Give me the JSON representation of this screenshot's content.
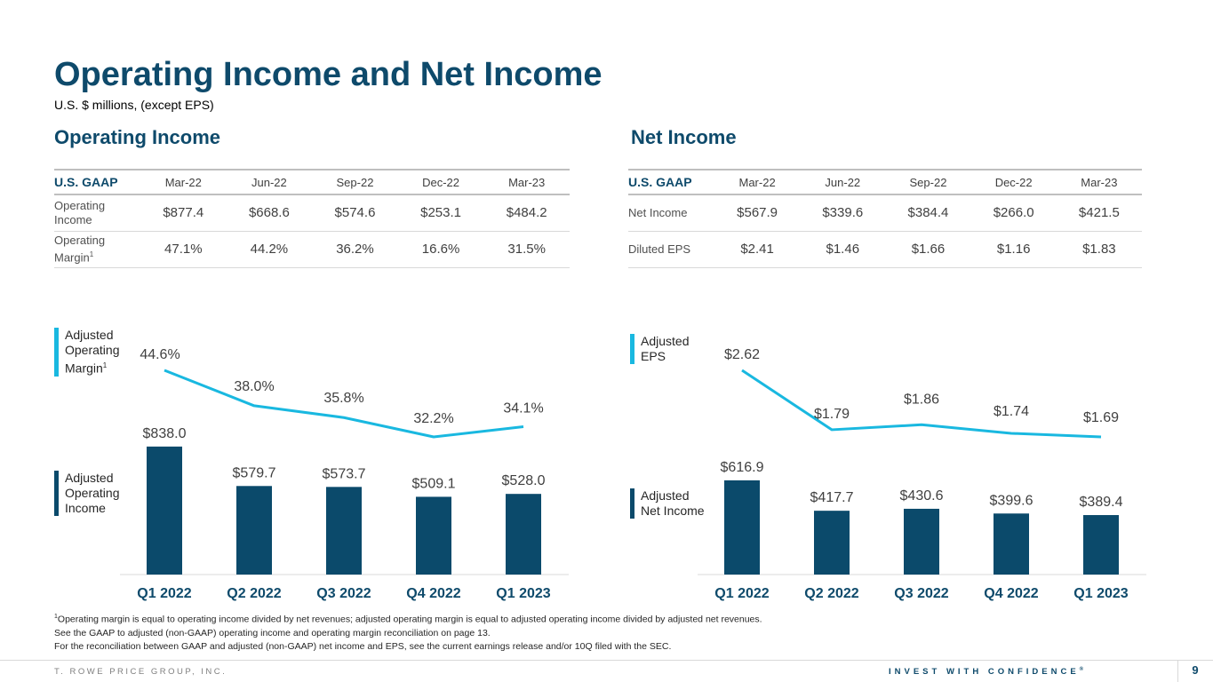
{
  "title": "Operating Income and Net Income",
  "subtitle": "U.S. $ millions, (except EPS)",
  "left": {
    "section": "Operating Income",
    "table": {
      "label": "U.S. GAAP",
      "columns": [
        "Mar-22",
        "Jun-22",
        "Sep-22",
        "Dec-22",
        "Mar-23"
      ],
      "rows": [
        {
          "label": "Operating Income",
          "values": [
            "$877.4",
            "$668.6",
            "$574.6",
            "$253.1",
            "$484.2"
          ]
        },
        {
          "label": "Operating Margin",
          "sup": "1",
          "values": [
            "47.1%",
            "44.2%",
            "36.2%",
            "16.6%",
            "31.5%"
          ]
        }
      ]
    },
    "legend_line": "Adjusted Operating Margin",
    "legend_line_sup": "1",
    "legend_bar": "Adjusted Operating Income"
  },
  "right": {
    "section": "Net Income",
    "table": {
      "label": "U.S. GAAP",
      "columns": [
        "Mar-22",
        "Jun-22",
        "Sep-22",
        "Dec-22",
        "Mar-23"
      ],
      "rows": [
        {
          "label": "Net Income",
          "values": [
            "$567.9",
            "$339.6",
            "$384.4",
            "$266.0",
            "$421.5"
          ]
        },
        {
          "label": "Diluted EPS",
          "values": [
            "$2.41",
            "$1.46",
            "$1.66",
            "$1.16",
            "$1.83"
          ]
        }
      ]
    },
    "legend_line": "Adjusted EPS",
    "legend_bar": "Adjusted Net Income"
  },
  "chart_data": [
    {
      "type": "bar",
      "title": "Adjusted Operating Income and Adjusted Operating Margin",
      "categories": [
        "Q1 2022",
        "Q2 2022",
        "Q3 2022",
        "Q4 2022",
        "Q1 2023"
      ],
      "series": [
        {
          "name": "Adjusted Operating Income",
          "kind": "bar",
          "values": [
            838.0,
            579.7,
            573.7,
            509.1,
            528.0
          ],
          "labels": [
            "$838.0",
            "$579.7",
            "$573.7",
            "$509.1",
            "$528.0"
          ],
          "color": "#0b4a6b"
        },
        {
          "name": "Adjusted Operating Margin",
          "kind": "line",
          "values": [
            44.6,
            38.0,
            35.8,
            32.2,
            34.1
          ],
          "labels": [
            "44.6%",
            "38.0%",
            "35.8%",
            "32.2%",
            "34.1%"
          ],
          "color": "#19b8e0"
        }
      ]
    },
    {
      "type": "bar",
      "title": "Adjusted Net Income and Adjusted EPS",
      "categories": [
        "Q1 2022",
        "Q2 2022",
        "Q3 2022",
        "Q4 2022",
        "Q1 2023"
      ],
      "series": [
        {
          "name": "Adjusted Net Income",
          "kind": "bar",
          "values": [
            616.9,
            417.7,
            430.6,
            399.6,
            389.4
          ],
          "labels": [
            "$616.9",
            "$417.7",
            "$430.6",
            "$399.6",
            "$389.4"
          ],
          "color": "#0b4a6b"
        },
        {
          "name": "Adjusted EPS",
          "kind": "line",
          "values": [
            2.62,
            1.79,
            1.86,
            1.74,
            1.69
          ],
          "labels": [
            "$2.62",
            "$1.79",
            "$1.86",
            "$1.74",
            "$1.69"
          ],
          "color": "#19b8e0"
        }
      ]
    }
  ],
  "footnotes": [
    "Operating margin is equal to operating income divided by net revenues; adjusted operating margin is equal to adjusted operating income divided by adjusted net revenues.",
    "See the GAAP to adjusted (non-GAAP) operating income and operating margin reconciliation on page 13.",
    "For the reconciliation between GAAP and adjusted (non-GAAP) net income and EPS, see the current earnings release and/or 10Q filed with the SEC."
  ],
  "footnote_marker": "1",
  "footer": {
    "company": "T. ROWE PRICE GROUP, INC.",
    "tagline": "INVEST WITH CONFIDENCE",
    "tagline_mark": "®",
    "page": "9"
  }
}
